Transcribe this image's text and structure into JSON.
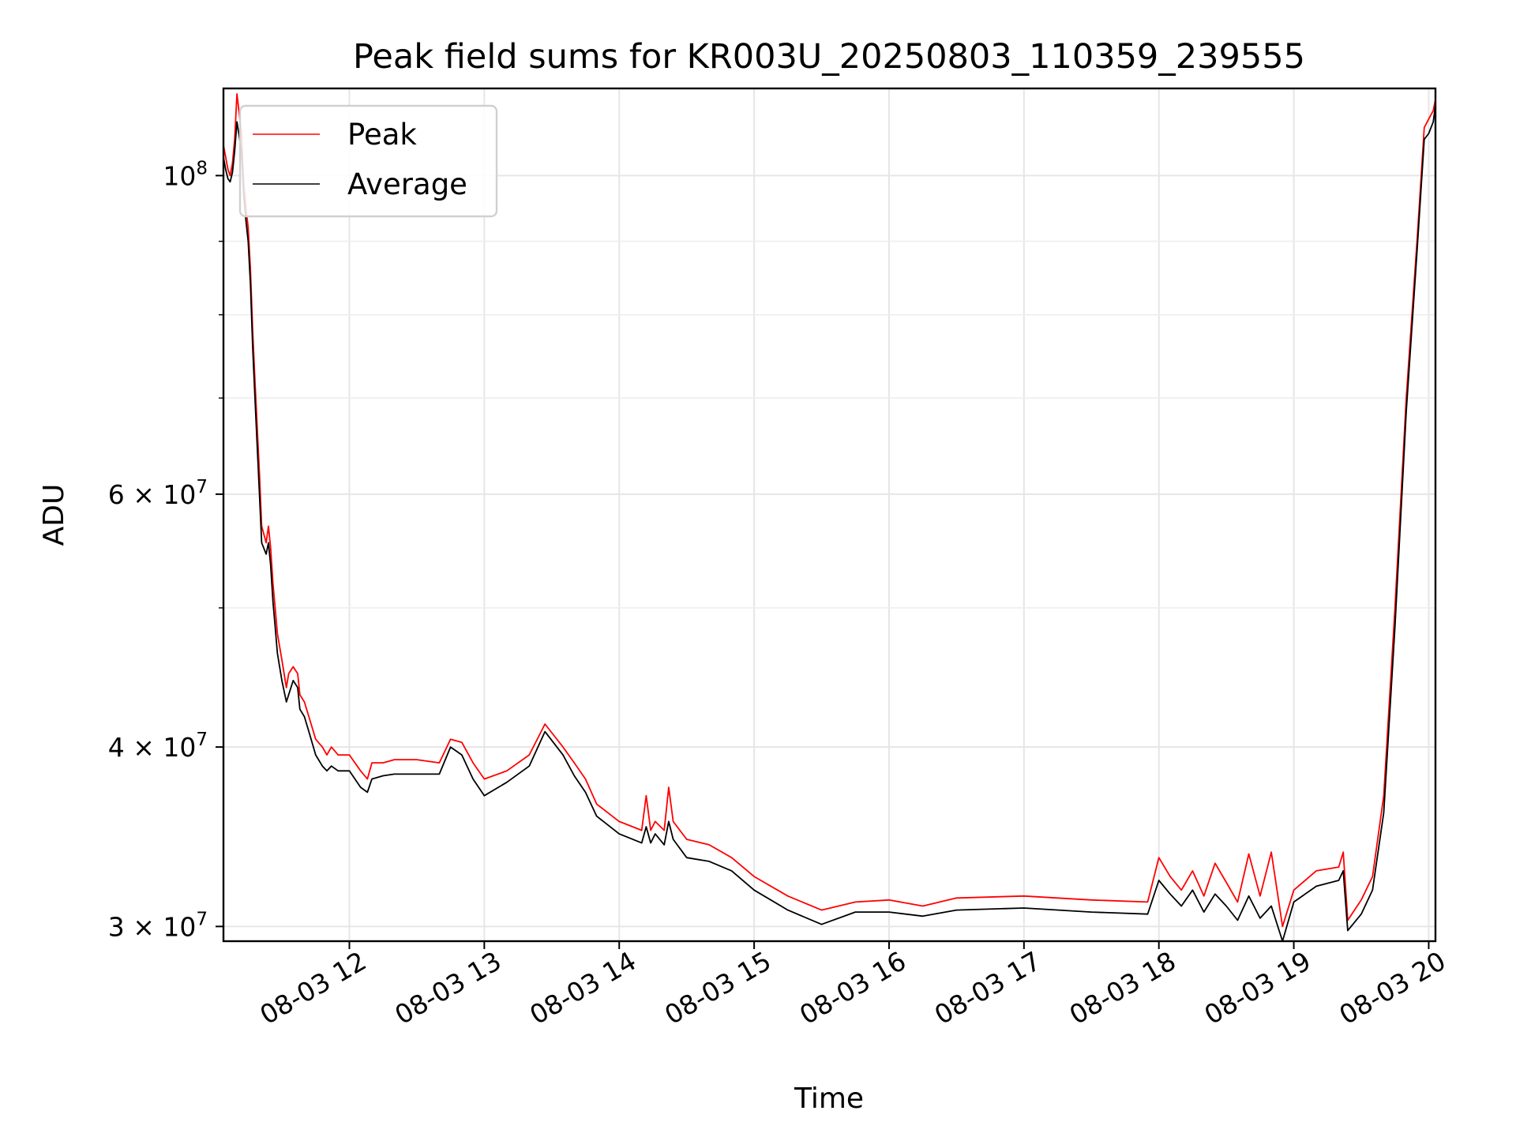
{
  "chart_data": {
    "type": "line",
    "title": "Peak field sums for KR003U_20250803_110359_239555",
    "xlabel": "Time",
    "ylabel": "ADU",
    "xscale": "time",
    "yscale": "log",
    "xlim": [
      "2025-08-03 11:04",
      "2025-08-03 20:03"
    ],
    "ylim": [
      29300000,
      115000000
    ],
    "grid": true,
    "legend": "upper-left",
    "x_ticks": [
      {
        "value": "2025-08-03 12:00",
        "label": "08-03 12"
      },
      {
        "value": "2025-08-03 13:00",
        "label": "08-03 13"
      },
      {
        "value": "2025-08-03 14:00",
        "label": "08-03 14"
      },
      {
        "value": "2025-08-03 15:00",
        "label": "08-03 15"
      },
      {
        "value": "2025-08-03 16:00",
        "label": "08-03 16"
      },
      {
        "value": "2025-08-03 17:00",
        "label": "08-03 17"
      },
      {
        "value": "2025-08-03 18:00",
        "label": "08-03 18"
      },
      {
        "value": "2025-08-03 19:00",
        "label": "08-03 19"
      },
      {
        "value": "2025-08-03 20:00",
        "label": "08-03 20"
      }
    ],
    "y_major_ticks": [
      {
        "value": 30000000,
        "mantissa": "3",
        "exp": "7"
      },
      {
        "value": 40000000,
        "mantissa": "4",
        "exp": "7"
      },
      {
        "value": 60000000,
        "mantissa": "6",
        "exp": "7"
      },
      {
        "value": 100000000,
        "mantissa": "",
        "exp": "8"
      }
    ],
    "y_minor_ticks": [
      50000000,
      70000000,
      80000000,
      90000000
    ],
    "series": [
      {
        "name": "Peak",
        "color": "#ff0000",
        "x": [
          "2025-08-03 11:04",
          "2025-08-03 11:05",
          "2025-08-03 11:06",
          "2025-08-03 11:07",
          "2025-08-03 11:08",
          "2025-08-03 11:09",
          "2025-08-03 11:10",
          "2025-08-03 11:12",
          "2025-08-03 11:13",
          "2025-08-03 11:14",
          "2025-08-03 11:15",
          "2025-08-03 11:16",
          "2025-08-03 11:17",
          "2025-08-03 11:18",
          "2025-08-03 11:20",
          "2025-08-03 11:21",
          "2025-08-03 11:23",
          "2025-08-03 11:24",
          "2025-08-03 11:25",
          "2025-08-03 11:26",
          "2025-08-03 11:27",
          "2025-08-03 11:28",
          "2025-08-03 11:30",
          "2025-08-03 11:32",
          "2025-08-03 11:33",
          "2025-08-03 11:35",
          "2025-08-03 11:37",
          "2025-08-03 11:38",
          "2025-08-03 11:40",
          "2025-08-03 11:42",
          "2025-08-03 11:45",
          "2025-08-03 11:48",
          "2025-08-03 11:50",
          "2025-08-03 11:52",
          "2025-08-03 11:55",
          "2025-08-03 12:00",
          "2025-08-03 12:05",
          "2025-08-03 12:08",
          "2025-08-03 12:10",
          "2025-08-03 12:15",
          "2025-08-03 12:20",
          "2025-08-03 12:30",
          "2025-08-03 12:40",
          "2025-08-03 12:45",
          "2025-08-03 12:50",
          "2025-08-03 12:55",
          "2025-08-03 13:00",
          "2025-08-03 13:10",
          "2025-08-03 13:20",
          "2025-08-03 13:27",
          "2025-08-03 13:35",
          "2025-08-03 13:40",
          "2025-08-03 13:45",
          "2025-08-03 13:50",
          "2025-08-03 14:00",
          "2025-08-03 14:10",
          "2025-08-03 14:12",
          "2025-08-03 14:14",
          "2025-08-03 14:16",
          "2025-08-03 14:20",
          "2025-08-03 14:22",
          "2025-08-03 14:24",
          "2025-08-03 14:30",
          "2025-08-03 14:40",
          "2025-08-03 14:50",
          "2025-08-03 15:00",
          "2025-08-03 15:15",
          "2025-08-03 15:30",
          "2025-08-03 15:45",
          "2025-08-03 16:00",
          "2025-08-03 16:15",
          "2025-08-03 16:30",
          "2025-08-03 17:00",
          "2025-08-03 17:30",
          "2025-08-03 17:55",
          "2025-08-03 18:00",
          "2025-08-03 18:05",
          "2025-08-03 18:10",
          "2025-08-03 18:15",
          "2025-08-03 18:20",
          "2025-08-03 18:25",
          "2025-08-03 18:30",
          "2025-08-03 18:35",
          "2025-08-03 18:40",
          "2025-08-03 18:45",
          "2025-08-03 18:50",
          "2025-08-03 18:55",
          "2025-08-03 19:00",
          "2025-08-03 19:10",
          "2025-08-03 19:20",
          "2025-08-03 19:22",
          "2025-08-03 19:24",
          "2025-08-03 19:30",
          "2025-08-03 19:35",
          "2025-08-03 19:40",
          "2025-08-03 19:45",
          "2025-08-03 19:50",
          "2025-08-03 19:55",
          "2025-08-03 19:58",
          "2025-08-03 20:00",
          "2025-08-03 20:02",
          "2025-08-03 20:03"
        ],
        "values": [
          105000000,
          103000000,
          101000000,
          100000000,
          102000000,
          106000000,
          114000000,
          107000000,
          99000000,
          95000000,
          92000000,
          86000000,
          78000000,
          72000000,
          62000000,
          57000000,
          55500000,
          57000000,
          55000000,
          52000000,
          50000000,
          48000000,
          46000000,
          44000000,
          45000000,
          45500000,
          45000000,
          43500000,
          43000000,
          42000000,
          40500000,
          40000000,
          39500000,
          40000000,
          39500000,
          39500000,
          38500000,
          38000000,
          39000000,
          39000000,
          39200000,
          39200000,
          39000000,
          40500000,
          40300000,
          39000000,
          38000000,
          38500000,
          39500000,
          41500000,
          40000000,
          39000000,
          38000000,
          36500000,
          35500000,
          35000000,
          37000000,
          35000000,
          35500000,
          35000000,
          37500000,
          35500000,
          34500000,
          34200000,
          33500000,
          32500000,
          31500000,
          30800000,
          31200000,
          31300000,
          31000000,
          31400000,
          31500000,
          31300000,
          31200000,
          33500000,
          32500000,
          31800000,
          32800000,
          31500000,
          33200000,
          32200000,
          31200000,
          33700000,
          31500000,
          33800000,
          30000000,
          31800000,
          32800000,
          33000000,
          33800000,
          30300000,
          31300000,
          32500000,
          37000000,
          50000000,
          70000000,
          91000000,
          108000000,
          109500000,
          111000000,
          113000000
        ]
      },
      {
        "name": "Average",
        "color": "#000000",
        "x": [
          "2025-08-03 11:04",
          "2025-08-03 11:05",
          "2025-08-03 11:06",
          "2025-08-03 11:07",
          "2025-08-03 11:08",
          "2025-08-03 11:09",
          "2025-08-03 11:10",
          "2025-08-03 11:12",
          "2025-08-03 11:13",
          "2025-08-03 11:14",
          "2025-08-03 11:15",
          "2025-08-03 11:16",
          "2025-08-03 11:17",
          "2025-08-03 11:18",
          "2025-08-03 11:20",
          "2025-08-03 11:21",
          "2025-08-03 11:23",
          "2025-08-03 11:24",
          "2025-08-03 11:25",
          "2025-08-03 11:26",
          "2025-08-03 11:27",
          "2025-08-03 11:28",
          "2025-08-03 11:30",
          "2025-08-03 11:32",
          "2025-08-03 11:33",
          "2025-08-03 11:35",
          "2025-08-03 11:37",
          "2025-08-03 11:38",
          "2025-08-03 11:40",
          "2025-08-03 11:42",
          "2025-08-03 11:45",
          "2025-08-03 11:48",
          "2025-08-03 11:50",
          "2025-08-03 11:52",
          "2025-08-03 11:55",
          "2025-08-03 12:00",
          "2025-08-03 12:05",
          "2025-08-03 12:08",
          "2025-08-03 12:10",
          "2025-08-03 12:15",
          "2025-08-03 12:20",
          "2025-08-03 12:30",
          "2025-08-03 12:40",
          "2025-08-03 12:45",
          "2025-08-03 12:50",
          "2025-08-03 12:55",
          "2025-08-03 13:00",
          "2025-08-03 13:10",
          "2025-08-03 13:20",
          "2025-08-03 13:27",
          "2025-08-03 13:35",
          "2025-08-03 13:40",
          "2025-08-03 13:45",
          "2025-08-03 13:50",
          "2025-08-03 14:00",
          "2025-08-03 14:10",
          "2025-08-03 14:12",
          "2025-08-03 14:14",
          "2025-08-03 14:16",
          "2025-08-03 14:20",
          "2025-08-03 14:22",
          "2025-08-03 14:24",
          "2025-08-03 14:30",
          "2025-08-03 14:40",
          "2025-08-03 14:50",
          "2025-08-03 15:00",
          "2025-08-03 15:15",
          "2025-08-03 15:30",
          "2025-08-03 15:45",
          "2025-08-03 16:00",
          "2025-08-03 16:15",
          "2025-08-03 16:30",
          "2025-08-03 17:00",
          "2025-08-03 17:30",
          "2025-08-03 17:55",
          "2025-08-03 18:00",
          "2025-08-03 18:05",
          "2025-08-03 18:10",
          "2025-08-03 18:15",
          "2025-08-03 18:20",
          "2025-08-03 18:25",
          "2025-08-03 18:30",
          "2025-08-03 18:35",
          "2025-08-03 18:40",
          "2025-08-03 18:45",
          "2025-08-03 18:50",
          "2025-08-03 18:55",
          "2025-08-03 19:00",
          "2025-08-03 19:10",
          "2025-08-03 19:20",
          "2025-08-03 19:22",
          "2025-08-03 19:24",
          "2025-08-03 19:30",
          "2025-08-03 19:35",
          "2025-08-03 19:40",
          "2025-08-03 19:45",
          "2025-08-03 19:50",
          "2025-08-03 19:55",
          "2025-08-03 19:58",
          "2025-08-03 20:00",
          "2025-08-03 20:02",
          "2025-08-03 20:03"
        ],
        "values": [
          103000000,
          101000000,
          99500000,
          99000000,
          100500000,
          104000000,
          109000000,
          104000000,
          97000000,
          93000000,
          90000000,
          84000000,
          76000000,
          70000000,
          60000000,
          55500000,
          54500000,
          55500000,
          53500000,
          50500000,
          48500000,
          46500000,
          44500000,
          43000000,
          43500000,
          44500000,
          44000000,
          42500000,
          42000000,
          41000000,
          39500000,
          38800000,
          38500000,
          38800000,
          38500000,
          38500000,
          37500000,
          37200000,
          38000000,
          38200000,
          38300000,
          38300000,
          38300000,
          40000000,
          39500000,
          38000000,
          37000000,
          37800000,
          38800000,
          41000000,
          39500000,
          38200000,
          37200000,
          35800000,
          34800000,
          34300000,
          35200000,
          34300000,
          34800000,
          34200000,
          35500000,
          34500000,
          33500000,
          33300000,
          32800000,
          31800000,
          30800000,
          30100000,
          30700000,
          30700000,
          30500000,
          30800000,
          30900000,
          30700000,
          30600000,
          32300000,
          31600000,
          31000000,
          31800000,
          30700000,
          31600000,
          31000000,
          30300000,
          31500000,
          30400000,
          31000000,
          29300000,
          31200000,
          32000000,
          32300000,
          32800000,
          29800000,
          30600000,
          31800000,
          36000000,
          48500000,
          68500000,
          89500000,
          106000000,
          107000000,
          109000000,
          112000000
        ]
      }
    ]
  }
}
